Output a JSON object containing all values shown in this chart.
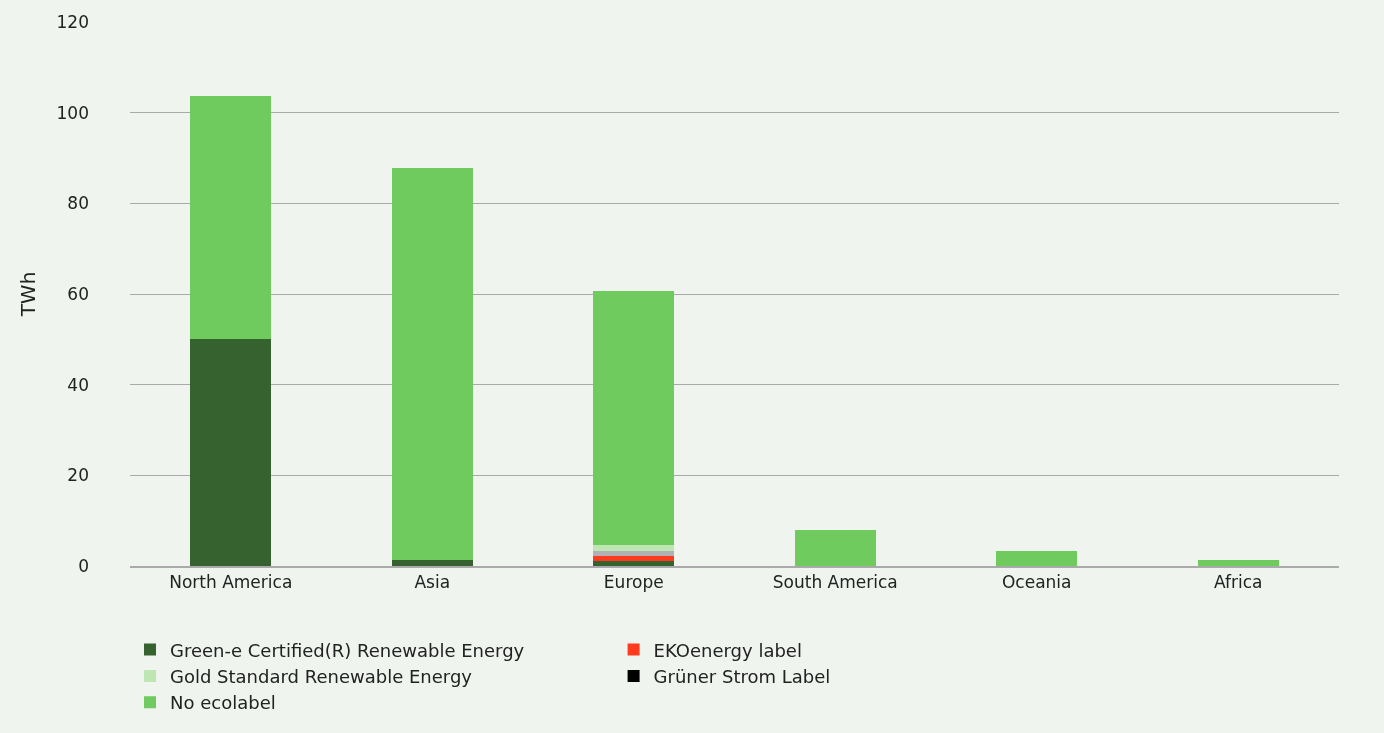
{
  "chart_data": {
    "type": "bar",
    "stacked": true,
    "ylabel": "TWh",
    "categories": [
      "North America",
      "Asia",
      "Europe",
      "South America",
      "Oceania",
      "Africa"
    ],
    "series": [
      {
        "name": "Green-e Certified(R) Renewable Energy",
        "color": "#36622f",
        "values": [
          50,
          1.3,
          1.1,
          0,
          0,
          0
        ]
      },
      {
        "name": "EKOenergy label",
        "color": "#ff3b1f",
        "values": [
          0,
          0,
          1.2,
          0,
          0,
          0
        ]
      },
      {
        "color": "#b0b0b5",
        "values": [
          0,
          0,
          1.1,
          0,
          0,
          0
        ]
      },
      {
        "name": "Gold Standard Renewable Energy",
        "color": "#bde6b3",
        "values": [
          0,
          0,
          1.3,
          0,
          0,
          0
        ]
      },
      {
        "name": "Grüner Strom Label",
        "color": "#000000",
        "values": [
          0,
          0,
          0,
          0,
          0,
          0
        ]
      },
      {
        "name": "No ecolabel",
        "color": "#6fcb5d",
        "values": [
          53.7,
          86.4,
          55.9,
          8.0,
          3.2,
          1.3
        ]
      }
    ],
    "ylim": [
      0,
      120
    ],
    "yticks": [
      0,
      20,
      40,
      60,
      80,
      100,
      120
    ],
    "grid": "y",
    "legend": "bottom"
  }
}
